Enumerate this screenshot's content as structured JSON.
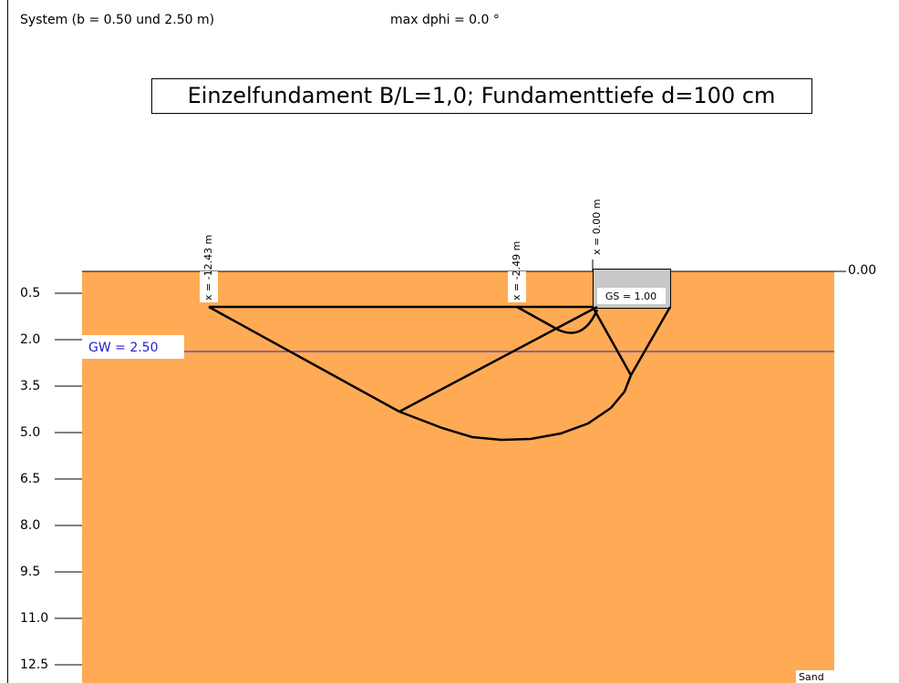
{
  "header": {
    "system": "System (b = 0.50 und 2.50 m)",
    "dphi": "max dphi = 0.0 °"
  },
  "title": "Einzelfundament B/L=1,0; Fundamenttiefe d=100 cm",
  "ground_level": "0.00",
  "depth_labels": [
    "0.5",
    "2.0",
    "3.5",
    "5.0",
    "6.5",
    "8.0",
    "9.5",
    "11.0",
    "12.5"
  ],
  "groundwater": "GW = 2.50",
  "x_labels": [
    "x = -12.43 m",
    "x = -2.49 m",
    "x = 0.00 m"
  ],
  "foundation": "GS = 1.00",
  "soil": "Sand"
}
